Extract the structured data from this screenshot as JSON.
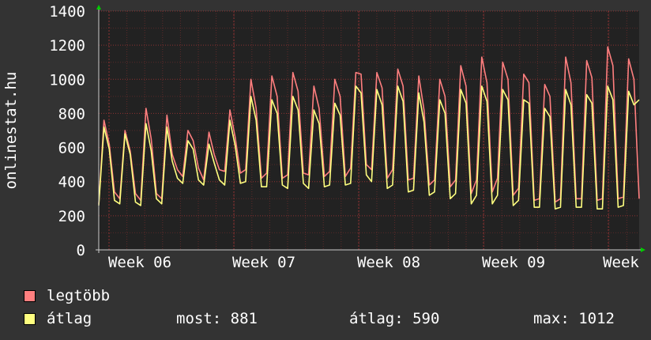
{
  "colors": {
    "background": "#333333",
    "plot": "#222222",
    "grid": "#993333",
    "axis": "#cccccc",
    "arrow": "#00cc00",
    "series_max": "#ff7f7f",
    "series_avg": "#ffff7f"
  },
  "chart_data": {
    "type": "line",
    "ylabel": "onlinestat.hu",
    "xlabel": "",
    "title": "",
    "ylim": [
      0,
      1400
    ],
    "y_ticks": [
      0,
      200,
      400,
      600,
      800,
      1000,
      1200,
      1400
    ],
    "x_ticks": [
      "Week 06",
      "Week 07",
      "Week 08",
      "Week 09",
      "Week"
    ],
    "grid": true,
    "legend_position": "bottom",
    "sample_interval_hours": 6,
    "series": [
      {
        "name": "legtöbb",
        "color": "#ff7f7f",
        "values": [
          270,
          760,
          620,
          340,
          300,
          700,
          580,
          330,
          290,
          830,
          650,
          330,
          300,
          790,
          560,
          470,
          430,
          700,
          640,
          480,
          410,
          690,
          560,
          470,
          460,
          820,
          660,
          450,
          470,
          1000,
          830,
          420,
          450,
          1020,
          900,
          420,
          440,
          1040,
          930,
          450,
          440,
          960,
          830,
          430,
          460,
          1000,
          900,
          430,
          480,
          1040,
          1030,
          500,
          470,
          1040,
          950,
          420,
          470,
          1060,
          960,
          410,
          420,
          1020,
          820,
          380,
          410,
          1000,
          900,
          370,
          410,
          1080,
          960,
          330,
          410,
          1130,
          980,
          340,
          420,
          1100,
          1000,
          320,
          360,
          1030,
          980,
          290,
          300,
          970,
          900,
          280,
          300,
          1130,
          980,
          300,
          300,
          1110,
          1010,
          290,
          300,
          1190,
          1080,
          300,
          310,
          1120,
          1000,
          300
        ]
      },
      {
        "name": "átlag",
        "color": "#ffff7f",
        "values": [
          260,
          720,
          590,
          290,
          270,
          680,
          560,
          280,
          260,
          740,
          580,
          300,
          270,
          720,
          520,
          420,
          390,
          640,
          590,
          410,
          380,
          620,
          510,
          410,
          380,
          760,
          610,
          390,
          400,
          900,
          760,
          370,
          370,
          880,
          800,
          380,
          360,
          900,
          820,
          390,
          360,
          820,
          740,
          370,
          380,
          860,
          790,
          380,
          390,
          960,
          920,
          440,
          400,
          940,
          850,
          360,
          380,
          960,
          870,
          340,
          350,
          920,
          750,
          320,
          340,
          880,
          800,
          300,
          330,
          940,
          860,
          270,
          320,
          960,
          870,
          270,
          320,
          940,
          880,
          260,
          290,
          880,
          860,
          250,
          250,
          830,
          780,
          240,
          250,
          940,
          850,
          250,
          250,
          910,
          860,
          240,
          240,
          960,
          880,
          250,
          260,
          930,
          850,
          880
        ]
      }
    ]
  },
  "legend": {
    "items": [
      {
        "label": "legtöbb",
        "color": "#ff7f7f"
      },
      {
        "label": "átlag",
        "color": "#ffff7f"
      }
    ],
    "stats": {
      "most": "most: 881",
      "atlag": "átlag: 590",
      "max": "max: 1012"
    }
  }
}
